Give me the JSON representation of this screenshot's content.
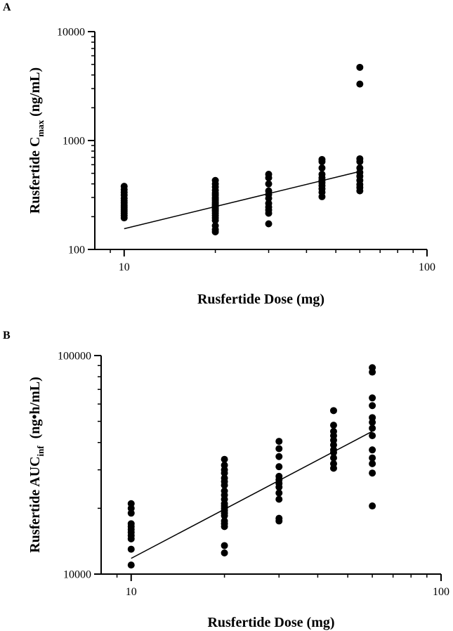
{
  "chart_data": [
    {
      "panel_label": "A",
      "type": "scatter",
      "xscale": "log",
      "yscale": "log",
      "xlabel": "Rusfertide Dose (mg)",
      "ylabel_prefix": "Rusfertide C",
      "ylabel_sub": "max",
      "ylabel_suffix": " (ng/mL)",
      "xlim": [
        8,
        100
      ],
      "ylim": [
        100,
        10000
      ],
      "xticks": [
        10,
        100
      ],
      "xtick_labels": [
        "10",
        "100"
      ],
      "yticks": [
        100,
        1000,
        10000
      ],
      "ytick_labels": [
        "100",
        "1000",
        "10000"
      ],
      "series": [
        {
          "name": "10 mg",
          "x": 10,
          "values": [
            380,
            355,
            335,
            315,
            295,
            280,
            268,
            255,
            245,
            235,
            225,
            215,
            205,
            195
          ]
        },
        {
          "name": "20 mg",
          "x": 20,
          "values": [
            430,
            400,
            375,
            350,
            330,
            315,
            300,
            290,
            280,
            270,
            262,
            255,
            248,
            240,
            232,
            225,
            215,
            205,
            195,
            185,
            165,
            152,
            145
          ]
        },
        {
          "name": "30 mg",
          "x": 30,
          "values": [
            490,
            455,
            400,
            345,
            320,
            295,
            265,
            245,
            230,
            215,
            172
          ]
        },
        {
          "name": "45 mg",
          "x": 45,
          "values": [
            670,
            640,
            560,
            490,
            455,
            430,
            410,
            385,
            360,
            335,
            305
          ]
        },
        {
          "name": "60 mg",
          "x": 60,
          "values": [
            4700,
            3300,
            680,
            640,
            560,
            510,
            470,
            430,
            395,
            370,
            345
          ]
        }
      ],
      "fit_line": {
        "x": [
          10,
          60
        ],
        "y": [
          155,
          520
        ]
      }
    },
    {
      "panel_label": "B",
      "type": "scatter",
      "xscale": "log",
      "yscale": "log",
      "xlabel": "Rusfertide Dose (mg)",
      "ylabel_prefix": "Rusfertide AUC",
      "ylabel_sub": "inf",
      "ylabel_suffix": "  (ng•h/mL)",
      "xlim": [
        8,
        100
      ],
      "ylim": [
        10000,
        100000
      ],
      "xticks": [
        10,
        100
      ],
      "xtick_labels": [
        "10",
        "100"
      ],
      "yticks": [
        10000,
        100000
      ],
      "ytick_labels": [
        "10000",
        "100000"
      ],
      "series": [
        {
          "name": "10 mg",
          "x": 10,
          "values": [
            21000,
            20000,
            19000,
            17000,
            16500,
            16000,
            15500,
            15000,
            14500,
            13000,
            11000
          ]
        },
        {
          "name": "20 mg",
          "x": 20,
          "values": [
            33500,
            31500,
            30000,
            29000,
            27500,
            26500,
            25500,
            24000,
            23000,
            22000,
            21000,
            20500,
            20000,
            19500,
            19000,
            18500,
            17500,
            17000,
            16500,
            13500,
            12500
          ]
        },
        {
          "name": "30 mg",
          "x": 30,
          "values": [
            40500,
            37500,
            34500,
            31000,
            28000,
            27000,
            26000,
            25000,
            23500,
            22000,
            18000,
            17500
          ]
        },
        {
          "name": "45 mg",
          "x": 45,
          "values": [
            56000,
            48000,
            45000,
            43000,
            41000,
            39000,
            37000,
            36000,
            34000,
            32000,
            30500
          ]
        },
        {
          "name": "60 mg",
          "x": 60,
          "values": [
            88000,
            84000,
            64000,
            59000,
            52000,
            49500,
            46500,
            43000,
            37000,
            34000,
            32000,
            29000,
            20500
          ]
        }
      ],
      "fit_line": {
        "x": [
          10,
          60
        ],
        "y": [
          11800,
          45000
        ]
      }
    }
  ]
}
